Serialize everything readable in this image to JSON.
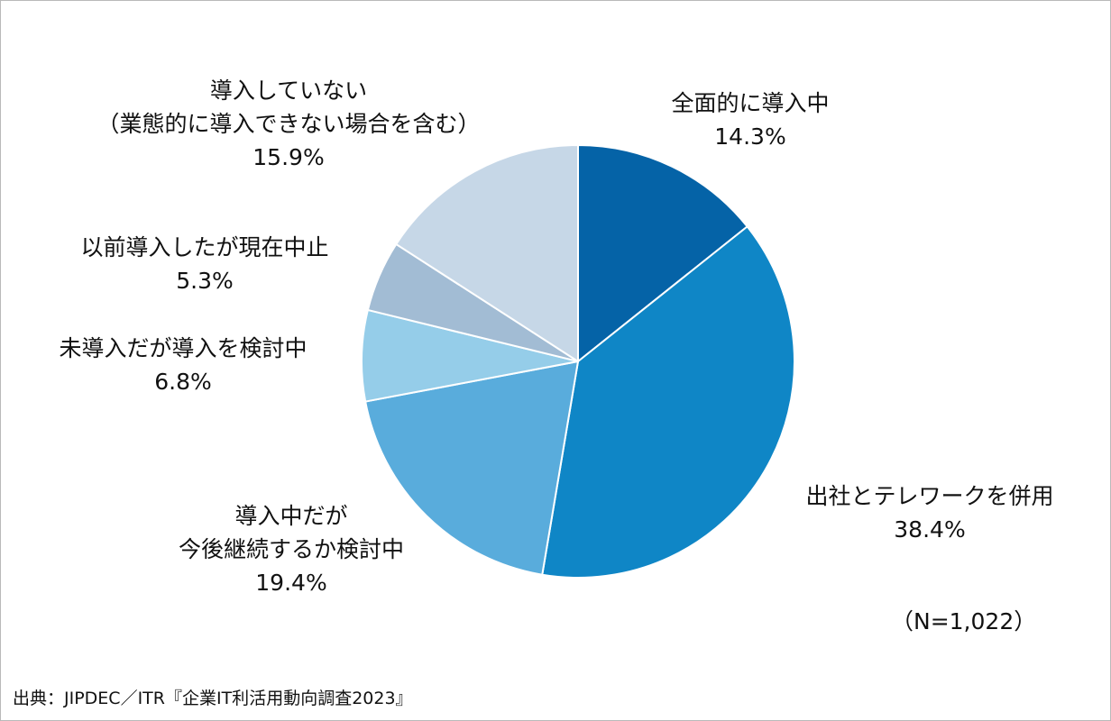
{
  "chart_data": {
    "type": "pie",
    "slices": [
      {
        "label_lines": [
          "全面的に導入中"
        ],
        "value": 14.3,
        "value_label": "14.3%",
        "color": "#0563a7"
      },
      {
        "label_lines": [
          "出社とテレワークを併用"
        ],
        "value": 38.4,
        "value_label": "38.4%",
        "color": "#0f86c6"
      },
      {
        "label_lines": [
          "導入中だが",
          "今後継続するか検討中"
        ],
        "value": 19.4,
        "value_label": "19.4%",
        "color": "#59acdc"
      },
      {
        "label_lines": [
          "未導入だが導入を検討中"
        ],
        "value": 6.8,
        "value_label": "6.8%",
        "color": "#95cde9"
      },
      {
        "label_lines": [
          "以前導入したが現在中止"
        ],
        "value": 5.3,
        "value_label": "5.3%",
        "color": "#a2bcd4"
      },
      {
        "label_lines": [
          "導入していない",
          "（業態的に導入できない場合を含む）"
        ],
        "value": 15.9,
        "value_label": "15.9%",
        "color": "#c6d7e7"
      }
    ],
    "start": "12 o'clock",
    "direction": "clockwise",
    "sample_note": "（N=1,022）",
    "source": "出典：JIPDEC／ITR『企業IT利活用動向調査2023』"
  }
}
